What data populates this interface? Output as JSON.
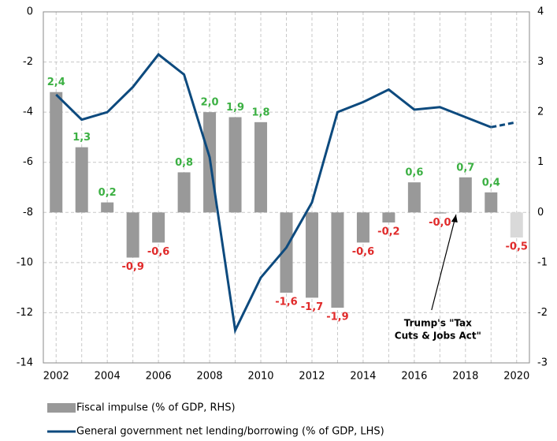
{
  "chart_data": {
    "type": "bar-line",
    "categories": [
      "2002",
      "2003",
      "2004",
      "2005",
      "2006",
      "2007",
      "2008",
      "2009",
      "2010",
      "2011",
      "2012",
      "2013",
      "2014",
      "2015",
      "2016",
      "2017",
      "2018",
      "2019",
      "2020"
    ],
    "x_labels": [
      {
        "value": "2002",
        "label": "2002"
      },
      {
        "value": "2004",
        "label": "2004"
      },
      {
        "value": "2006",
        "label": "2006"
      },
      {
        "value": "2008",
        "label": "2008"
      },
      {
        "value": "2010",
        "label": "2010"
      },
      {
        "value": "2012",
        "label": "2012"
      },
      {
        "value": "2014",
        "label": "2014"
      },
      {
        "value": "2016",
        "label": "2016"
      },
      {
        "value": "2018",
        "label": "2018"
      },
      {
        "value": "2020",
        "label": "2020"
      }
    ],
    "series": [
      {
        "name": "Fiscal impulse (% of GDP, RHS)",
        "axis": "y2",
        "kind": "bar",
        "color": "#999999",
        "colors": [
          "#999999",
          "#999999",
          "#999999",
          "#999999",
          "#999999",
          "#999999",
          "#999999",
          "#999999",
          "#999999",
          "#999999",
          "#999999",
          "#999999",
          "#999999",
          "#999999",
          "#999999",
          "#999999",
          "#999999",
          "#999999",
          "#d9d9d9"
        ],
        "values": [
          2.4,
          1.3,
          0.2,
          -0.9,
          -0.6,
          0.8,
          2.0,
          1.9,
          1.8,
          -1.6,
          -1.7,
          -1.9,
          -0.6,
          -0.2,
          0.6,
          -0.02,
          0.7,
          0.4,
          -0.5
        ],
        "value_labels": [
          "2,4",
          "1,3",
          "0,2",
          "-0,9",
          "-0,6",
          "0,8",
          "2,0",
          "1,9",
          "1,8",
          "-1,6",
          "-1,7",
          "-1,9",
          "-0,6",
          "-0,2",
          "0,6",
          "-0,0",
          "0,7",
          "0,4",
          "-0,5"
        ]
      },
      {
        "name": "General government net lending/borrowing (% of GDP, LHS)",
        "kind": "line",
        "color": "#0d4a7e",
        "dashed_from": "2019",
        "values": [
          -3.3,
          -4.3,
          -4.0,
          -3.0,
          -1.7,
          -2.5,
          -5.8,
          -12.7,
          -10.6,
          -9.4,
          -7.6,
          -4.0,
          -3.6,
          -3.1,
          -3.9,
          -3.8,
          -4.2,
          -4.6,
          -4.4
        ]
      }
    ],
    "label_colors": {
      "positive": "#3cb043",
      "negative": "#e02a2a"
    },
    "ylim": [
      -14,
      0
    ],
    "yticks": [
      0,
      -2,
      -4,
      -6,
      -8,
      -10,
      -12,
      -14
    ],
    "y2lim": [
      -3,
      4
    ],
    "y2ticks": [
      4,
      3,
      2,
      1,
      0,
      -1,
      -2,
      -3
    ],
    "grid": true,
    "annotation": {
      "lines": [
        "Trump's \"Tax",
        "Cuts & Jobs Act\""
      ],
      "category": "2018"
    }
  }
}
